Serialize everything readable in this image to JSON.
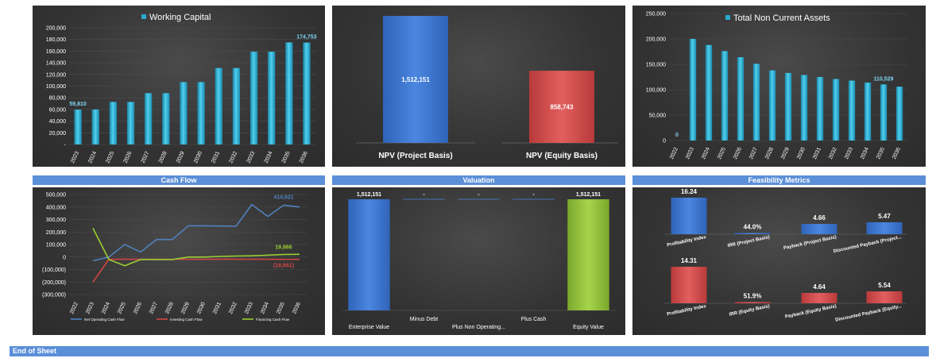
{
  "headers": {
    "cashflow": "Cash Flow",
    "valuation": "Valuation",
    "feasibility": "Feasibility Metrics"
  },
  "footer": "End of Sheet",
  "chart_data": [
    {
      "id": "working_capital",
      "type": "bar",
      "legend": "Working Capital",
      "legend_position": "top",
      "categories": [
        "2023",
        "2024",
        "2025",
        "2026",
        "2027",
        "2028",
        "2029",
        "2030",
        "2031",
        "2032",
        "2033",
        "2034",
        "2035",
        "2036"
      ],
      "values": [
        59810,
        60000,
        73000,
        73000,
        88000,
        88000,
        107000,
        107000,
        131000,
        131000,
        159000,
        159000,
        175000,
        174753
      ],
      "data_labels": [
        {
          "index": 0,
          "text": "59,810"
        },
        {
          "index": 13,
          "text": "174,753"
        }
      ],
      "yticks": [
        "-",
        "20,000",
        "40,000",
        "60,000",
        "80,000",
        "100,000",
        "120,000",
        "140,000",
        "160,000",
        "180,000",
        "200,000"
      ],
      "ylim": [
        0,
        200000
      ],
      "color": "#29a9cf"
    },
    {
      "id": "npv",
      "type": "bar",
      "categories": [
        "NPV (Project Basis)",
        "NPV (Equity Basis)"
      ],
      "values": [
        1512151,
        858743
      ],
      "data_labels": [
        "1,512,151",
        "858,743"
      ],
      "colors": [
        "#3a75d0",
        "#d34b4b"
      ]
    },
    {
      "id": "non_current_assets",
      "type": "bar",
      "legend": "Total Non Current Assets",
      "legend_position": "top",
      "categories": [
        "2022",
        "2023",
        "2024",
        "2025",
        "2026",
        "2027",
        "2028",
        "2029",
        "2030",
        "2031",
        "2032",
        "2033",
        "2034",
        "2035",
        "2036"
      ],
      "values": [
        0,
        200000,
        188000,
        176000,
        164000,
        151000,
        138000,
        133000,
        129000,
        125000,
        121000,
        118000,
        114000,
        110529,
        106000
      ],
      "data_labels": [
        {
          "index": 0,
          "text": "0"
        },
        {
          "index": 13,
          "text": "110,529"
        }
      ],
      "yticks": [
        "0",
        "50,000",
        "100,000",
        "150,000",
        "200,000",
        "250,000"
      ],
      "ylim": [
        0,
        250000
      ],
      "color": "#29a9cf"
    },
    {
      "id": "cash_flow",
      "type": "line",
      "x": [
        "2022",
        "2023",
        "2024",
        "2025",
        "2026",
        "2027",
        "2028",
        "2029",
        "2030",
        "2031",
        "2032",
        "2033",
        "2034",
        "2035",
        "2036"
      ],
      "yticks": [
        "(300,000)",
        "(200,000)",
        "(100,000)",
        "0",
        "100,000",
        "200,000",
        "300,000",
        "400,000",
        "500,000"
      ],
      "ylim": [
        -300000,
        500000
      ],
      "series": [
        {
          "name": "Net Operating Cash Flow",
          "color": "#4f81bd",
          "values": [
            null,
            -30000,
            0,
            100000,
            40000,
            140000,
            140000,
            250000,
            250000,
            248000,
            246000,
            420000,
            325000,
            414621,
            400000
          ],
          "end_label": "414,621"
        },
        {
          "name": "Investing Cash Flow",
          "color": "#d04545",
          "values": [
            null,
            -200000,
            -18000,
            -18000,
            -18000,
            -18000,
            -18000,
            -18000,
            -18000,
            -18000,
            -18000,
            -18000,
            -18000,
            -18661,
            -18661
          ],
          "end_label": "(18,661)"
        },
        {
          "name": "Financing Cash Flow",
          "color": "#9acd32",
          "values": [
            null,
            230000,
            -20000,
            -70000,
            -20000,
            -20000,
            -20000,
            0,
            0,
            5000,
            8000,
            10000,
            15000,
            19866,
            22000
          ],
          "end_label": "19,866"
        }
      ],
      "legend_position": "bottom"
    },
    {
      "id": "valuation",
      "type": "bar",
      "categories": [
        "Enterprise Value",
        "Minus Debt",
        "Plus Non Operating...",
        "Plus Cash",
        "Equity Value"
      ],
      "values": [
        1512151,
        0,
        0,
        0,
        1512151
      ],
      "data_labels": [
        "1,512,151",
        "-",
        "-",
        "-",
        "1,512,151"
      ],
      "colors": [
        "#3a75d0",
        "#3a75d0",
        "#3a75d0",
        "#3a75d0",
        "#8fc13a"
      ]
    },
    {
      "id": "feasibility_project",
      "type": "bar",
      "categories": [
        "Profitability Index",
        "IRR (Project Basis)",
        "Payback  (Project Basis)",
        "Discounted Payback  (Project..."
      ],
      "values": [
        16.24,
        0.44,
        4.66,
        5.47
      ],
      "data_labels": [
        "16.24",
        "44.0%",
        "4.66",
        "5.47"
      ],
      "color": "#3a75d0"
    },
    {
      "id": "feasibility_equity",
      "type": "bar",
      "categories": [
        "Profitability Index",
        "IRR (Equity Basis)",
        "Payback  (Equity Basis)",
        "Discounted Payback  (Equity..."
      ],
      "values": [
        14.31,
        0.519,
        4.64,
        5.54
      ],
      "data_labels": [
        "14.31",
        "51.9%",
        "4.64",
        "5.54"
      ],
      "color": "#d34b4b"
    }
  ]
}
